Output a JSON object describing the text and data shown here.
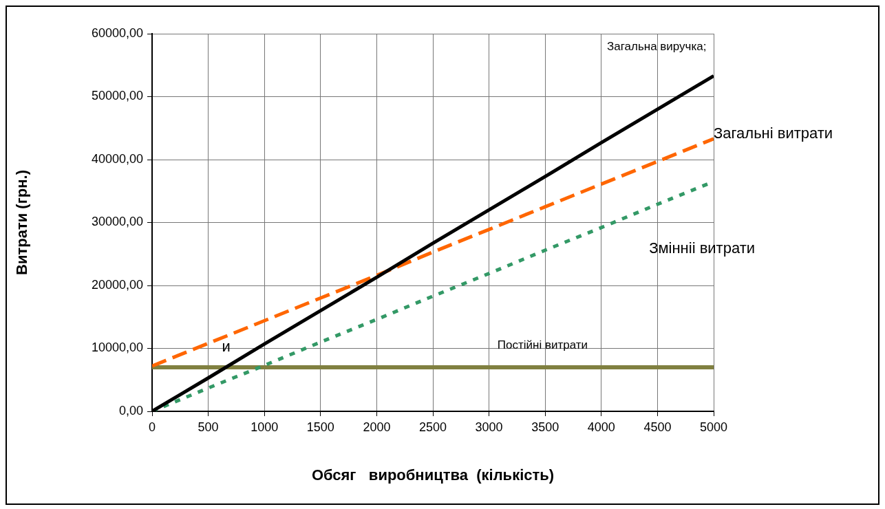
{
  "chart_data": {
    "type": "line",
    "xlabel": "Обсяг   виробництва  (кількість)",
    "ylabel": "Витрати (грн.)",
    "x": [
      0,
      500,
      1000,
      1500,
      2000,
      2500,
      3000,
      3500,
      4000,
      4500,
      5000
    ],
    "series": [
      {
        "name": "Загальна виручка;",
        "color": "#000000",
        "line_style": "solid",
        "values": [
          0,
          5300,
          10700,
          16000,
          21300,
          26700,
          32000,
          37300,
          42700,
          48000,
          53300
        ]
      },
      {
        "name": "Загальні витрати",
        "color": "#ff6600",
        "line_style": "dashed",
        "values": [
          7200,
          10800,
          14400,
          18000,
          21600,
          25300,
          28900,
          32500,
          36100,
          39700,
          43300
        ]
      },
      {
        "name": "Змінніі витрати",
        "color": "#339966",
        "line_style": "dotted",
        "values": [
          0,
          3700,
          7300,
          11000,
          14600,
          18300,
          21900,
          25600,
          29200,
          32900,
          36500
        ]
      },
      {
        "name": "Постійні витрати",
        "color": "#808040",
        "line_style": "solid",
        "values": [
          7000,
          7000,
          7000,
          7000,
          7000,
          7000,
          7000,
          7000,
          7000,
          7000,
          7000
        ]
      }
    ],
    "annotations": [
      "и"
    ],
    "xlim": [
      0,
      5000
    ],
    "xticks": [
      0,
      500,
      1000,
      1500,
      2000,
      2500,
      3000,
      3500,
      4000,
      4500,
      5000
    ],
    "ylim": [
      0,
      60000
    ],
    "yticks": [
      {
        "value": 0,
        "label": "0,00"
      },
      {
        "value": 10000,
        "label": "10000,00"
      },
      {
        "value": 20000,
        "label": "20000,00"
      },
      {
        "value": 30000,
        "label": "30000,00"
      },
      {
        "value": 40000,
        "label": "40000,00"
      },
      {
        "value": 50000,
        "label": "50000,00"
      },
      {
        "value": 60000,
        "label": "60000,00"
      }
    ],
    "grid": true,
    "legend": false,
    "marker": "none"
  }
}
